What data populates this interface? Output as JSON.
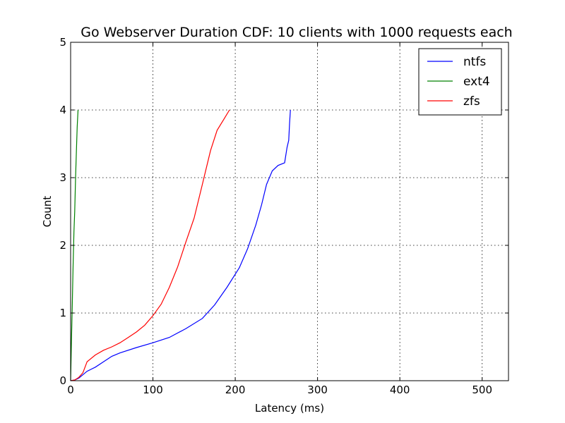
{
  "chart_data": {
    "type": "line",
    "title": "Go Webserver Duration CDF: 10 clients with 1000 requests each",
    "xlabel": "Latency (ms)",
    "ylabel": "Count",
    "xlim": [
      0,
      532
    ],
    "ylim": [
      0,
      5
    ],
    "xticks": [
      0,
      100,
      200,
      300,
      400,
      500
    ],
    "yticks": [
      0,
      1,
      2,
      3,
      4,
      5
    ],
    "grid": true,
    "legend": "top-right",
    "series": [
      {
        "name": "ntfs",
        "color": "#0000ff",
        "points": [
          [
            0,
            0
          ],
          [
            5,
            0.01
          ],
          [
            10,
            0.04
          ],
          [
            15,
            0.09
          ],
          [
            20,
            0.14
          ],
          [
            30,
            0.2
          ],
          [
            40,
            0.28
          ],
          [
            50,
            0.36
          ],
          [
            60,
            0.41
          ],
          [
            80,
            0.49
          ],
          [
            100,
            0.56
          ],
          [
            120,
            0.64
          ],
          [
            140,
            0.77
          ],
          [
            160,
            0.92
          ],
          [
            175,
            1.12
          ],
          [
            190,
            1.38
          ],
          [
            205,
            1.67
          ],
          [
            215,
            1.95
          ],
          [
            225,
            2.3
          ],
          [
            232,
            2.6
          ],
          [
            238,
            2.9
          ],
          [
            245,
            3.1
          ],
          [
            252,
            3.18
          ],
          [
            260,
            3.22
          ],
          [
            263,
            3.45
          ],
          [
            265,
            3.55
          ],
          [
            266,
            3.8
          ],
          [
            267,
            4.0
          ]
        ]
      },
      {
        "name": "ext4",
        "color": "#008000",
        "points": [
          [
            0,
            0
          ],
          [
            1,
            0.6
          ],
          [
            2,
            1.1
          ],
          [
            3,
            1.7
          ],
          [
            4,
            2.2
          ],
          [
            5,
            2.5
          ],
          [
            6,
            3.0
          ],
          [
            7,
            3.4
          ],
          [
            8,
            3.75
          ],
          [
            9,
            4.0
          ]
        ]
      },
      {
        "name": "zfs",
        "color": "#ff0000",
        "points": [
          [
            0,
            0
          ],
          [
            5,
            0.01
          ],
          [
            10,
            0.05
          ],
          [
            15,
            0.12
          ],
          [
            20,
            0.28
          ],
          [
            30,
            0.38
          ],
          [
            40,
            0.45
          ],
          [
            50,
            0.5
          ],
          [
            60,
            0.56
          ],
          [
            70,
            0.64
          ],
          [
            80,
            0.72
          ],
          [
            90,
            0.82
          ],
          [
            100,
            0.96
          ],
          [
            110,
            1.13
          ],
          [
            120,
            1.38
          ],
          [
            130,
            1.68
          ],
          [
            140,
            2.05
          ],
          [
            150,
            2.4
          ],
          [
            160,
            2.9
          ],
          [
            170,
            3.4
          ],
          [
            178,
            3.7
          ],
          [
            186,
            3.86
          ],
          [
            193,
            4.0
          ]
        ]
      }
    ]
  }
}
